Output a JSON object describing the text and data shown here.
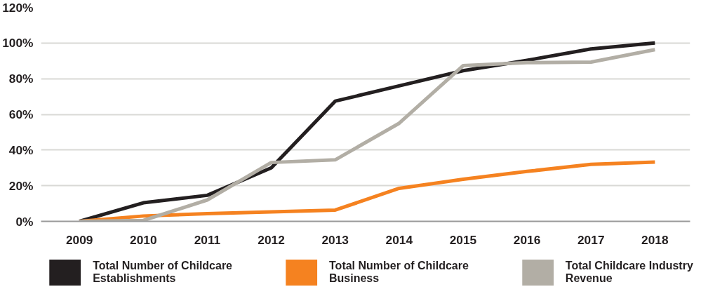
{
  "chart_data": {
    "type": "line",
    "categories": [
      "2009",
      "2010",
      "2011",
      "2012",
      "2013",
      "2014",
      "2015",
      "2016",
      "2017",
      "2018"
    ],
    "series": [
      {
        "name": "Total Number of Childcare Establishments",
        "color": "#231f20",
        "values": [
          0,
          10.4,
          14.6,
          30,
          67.4,
          76,
          84.5,
          90.3,
          96.7,
          100
        ]
      },
      {
        "name": "Total Number of Childcare Business",
        "color": "#f58220",
        "values": [
          0,
          3,
          4.3,
          5.3,
          6.3,
          18.5,
          23.6,
          28,
          32,
          33.2
        ]
      },
      {
        "name": "Total Childcare Industry Revenue",
        "color": "#b2aea5",
        "values": [
          0,
          0.5,
          12,
          33,
          34.5,
          55,
          87.3,
          89,
          89.3,
          96.3
        ]
      }
    ],
    "ylim": [
      0,
      120
    ],
    "yticks": [
      {
        "value": 0,
        "label": "0%"
      },
      {
        "value": 20,
        "label": "20%"
      },
      {
        "value": 40,
        "label": "40%"
      },
      {
        "value": 60,
        "label": "60%"
      },
      {
        "value": 80,
        "label": "80%"
      },
      {
        "value": 100,
        "label": "100%"
      },
      {
        "value": 120,
        "label": "120%"
      }
    ],
    "grid": "y",
    "legend": "bottom",
    "marker": "none",
    "line_style": "solid"
  }
}
